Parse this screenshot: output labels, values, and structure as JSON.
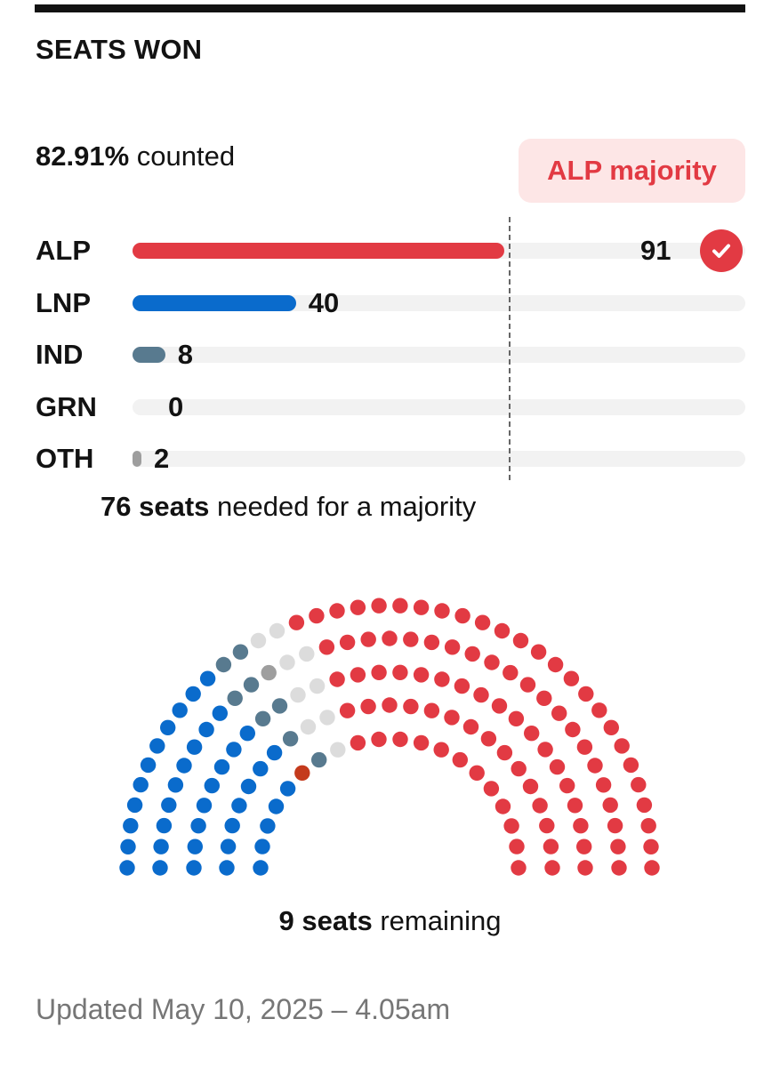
{
  "header": {
    "title": "SEATS WON"
  },
  "counted": {
    "value": "82.91%",
    "suffix": "counted"
  },
  "majority_badge": "ALP majority",
  "majority_note": {
    "value": "76 seats",
    "suffix": "needed for a majority"
  },
  "remaining_note": {
    "value": "9 seats",
    "suffix": "remaining"
  },
  "updated": "Updated May 10, 2025 – 4.05am",
  "chart_data": {
    "type": "bar",
    "orientation": "horizontal",
    "categories": [
      "ALP",
      "LNP",
      "IND",
      "GRN",
      "OTH"
    ],
    "values": [
      91,
      40,
      8,
      0,
      2
    ],
    "colors": [
      "#e23a43",
      "#0a6bcc",
      "#587a8f",
      "#3a9b3a",
      "#9e9e9e"
    ],
    "winner": "ALP",
    "total_seats": 150,
    "majority_threshold": 76,
    "remaining_seats": 9,
    "hemicycle": {
      "rows": 5,
      "seat_counts": [
        {
          "party": "LNP",
          "seats": 40,
          "color": "#0a6bcc"
        },
        {
          "party": "OTH",
          "seats": 1,
          "color": "#c43a1c"
        },
        {
          "party": "IND",
          "seats": 8,
          "color": "#587a8f"
        },
        {
          "party": "OTH",
          "seats": 1,
          "color": "#9e9e9e"
        },
        {
          "party": "Remaining",
          "seats": 9,
          "color": "#dcdcdc"
        },
        {
          "party": "ALP",
          "seats": 91,
          "color": "#e23a43"
        }
      ]
    }
  }
}
